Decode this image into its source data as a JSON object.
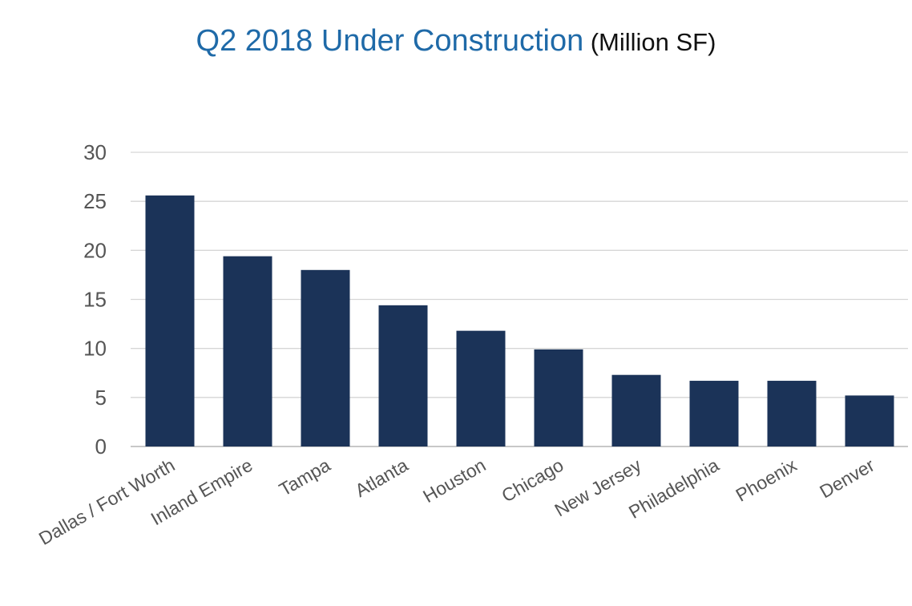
{
  "chart_data": {
    "type": "bar",
    "title": "Q2 2018 Under Construction",
    "title_unit": "(Million SF)",
    "xlabel": "",
    "ylabel": "",
    "categories": [
      "Dallas / Fort Worth",
      "Inland Empire",
      "Tampa",
      "Atlanta",
      "Houston",
      "Chicago",
      "New Jersey",
      "Philadelphia",
      "Phoenix",
      "Denver"
    ],
    "values": [
      25.6,
      19.4,
      18.0,
      14.4,
      11.8,
      9.9,
      7.3,
      6.7,
      6.7,
      5.2
    ],
    "yticks": [
      0,
      5,
      10,
      15,
      20,
      25,
      30
    ],
    "ylim": [
      0,
      30
    ],
    "grid": true,
    "legend": "none",
    "colors": {
      "bar": "#1b3358",
      "title": "#1f6aa8",
      "title_unit": "#111111",
      "tick_text": "#555555",
      "grid": "#d6d6d6"
    }
  }
}
